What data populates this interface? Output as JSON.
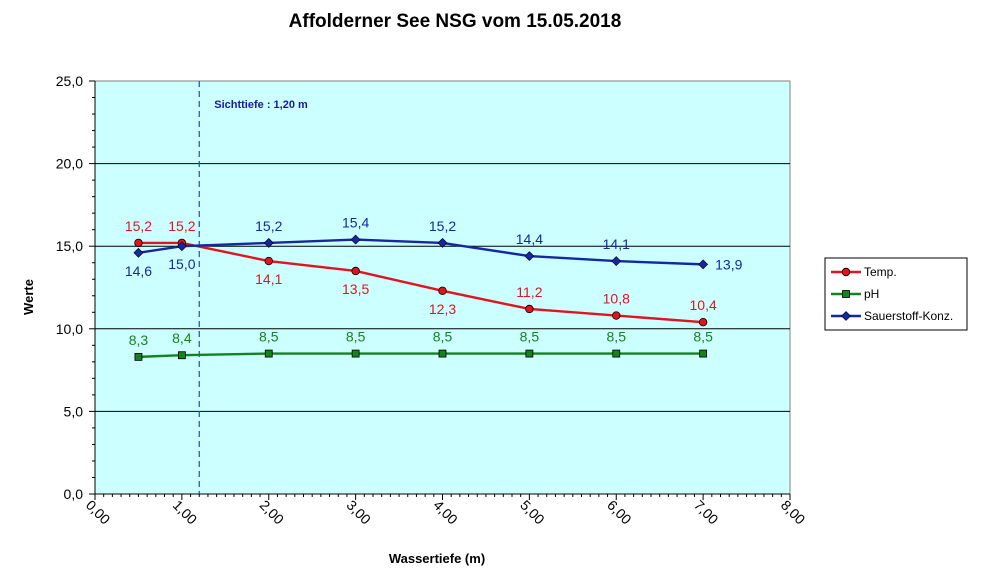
{
  "chart_data": {
    "type": "line",
    "title": "Affolderner See NSG vom 15.05.2018",
    "xlabel": "Wassertiefe (m)",
    "ylabel": "Werte",
    "xlim": [
      0,
      8
    ],
    "ylim": [
      0,
      25
    ],
    "x_ticks": [
      "0,00",
      "1,00",
      "2,00",
      "3,00",
      "4,00",
      "5,00",
      "6,00",
      "7,00",
      "8,00"
    ],
    "y_ticks": [
      "0,0",
      "5,0",
      "10,0",
      "15,0",
      "20,0",
      "25,0"
    ],
    "grid": "horizontal major",
    "legend_position": "right",
    "background_color": "#ccffff",
    "x": [
      0.5,
      1.0,
      2.0,
      3.0,
      4.0,
      5.0,
      6.0,
      7.0
    ],
    "series": [
      {
        "name": "Temp.",
        "color": "#e0141e",
        "marker": "circle",
        "values": [
          15.2,
          15.2,
          14.1,
          13.5,
          12.3,
          11.2,
          10.8,
          10.4
        ],
        "labels": [
          "15,2",
          "15,2",
          "14,1",
          "13,5",
          "12,3",
          "11,2",
          "10,8",
          "10,4"
        ]
      },
      {
        "name": "pH",
        "color": "#14821e",
        "marker": "square",
        "values": [
          8.3,
          8.4,
          8.5,
          8.5,
          8.5,
          8.5,
          8.5,
          8.5
        ],
        "labels": [
          "8,3",
          "8,4",
          "8,5",
          "8,5",
          "8,5",
          "8,5",
          "8,5",
          "8,5"
        ]
      },
      {
        "name": "Sauerstoff-Konz.",
        "color": "#1428a0",
        "marker": "diamond",
        "values": [
          14.6,
          15.0,
          15.2,
          15.4,
          15.2,
          14.4,
          14.1,
          13.9
        ],
        "labels": [
          "14,6",
          "15,0",
          "15,2",
          "15,4",
          "15,2",
          "14,4",
          "14,1",
          "13,9"
        ]
      }
    ],
    "reference_line": {
      "x": 1.2,
      "label": "Sichttiefe : 1,20 m",
      "style": "dashed",
      "color": "#1f4fa8"
    }
  }
}
